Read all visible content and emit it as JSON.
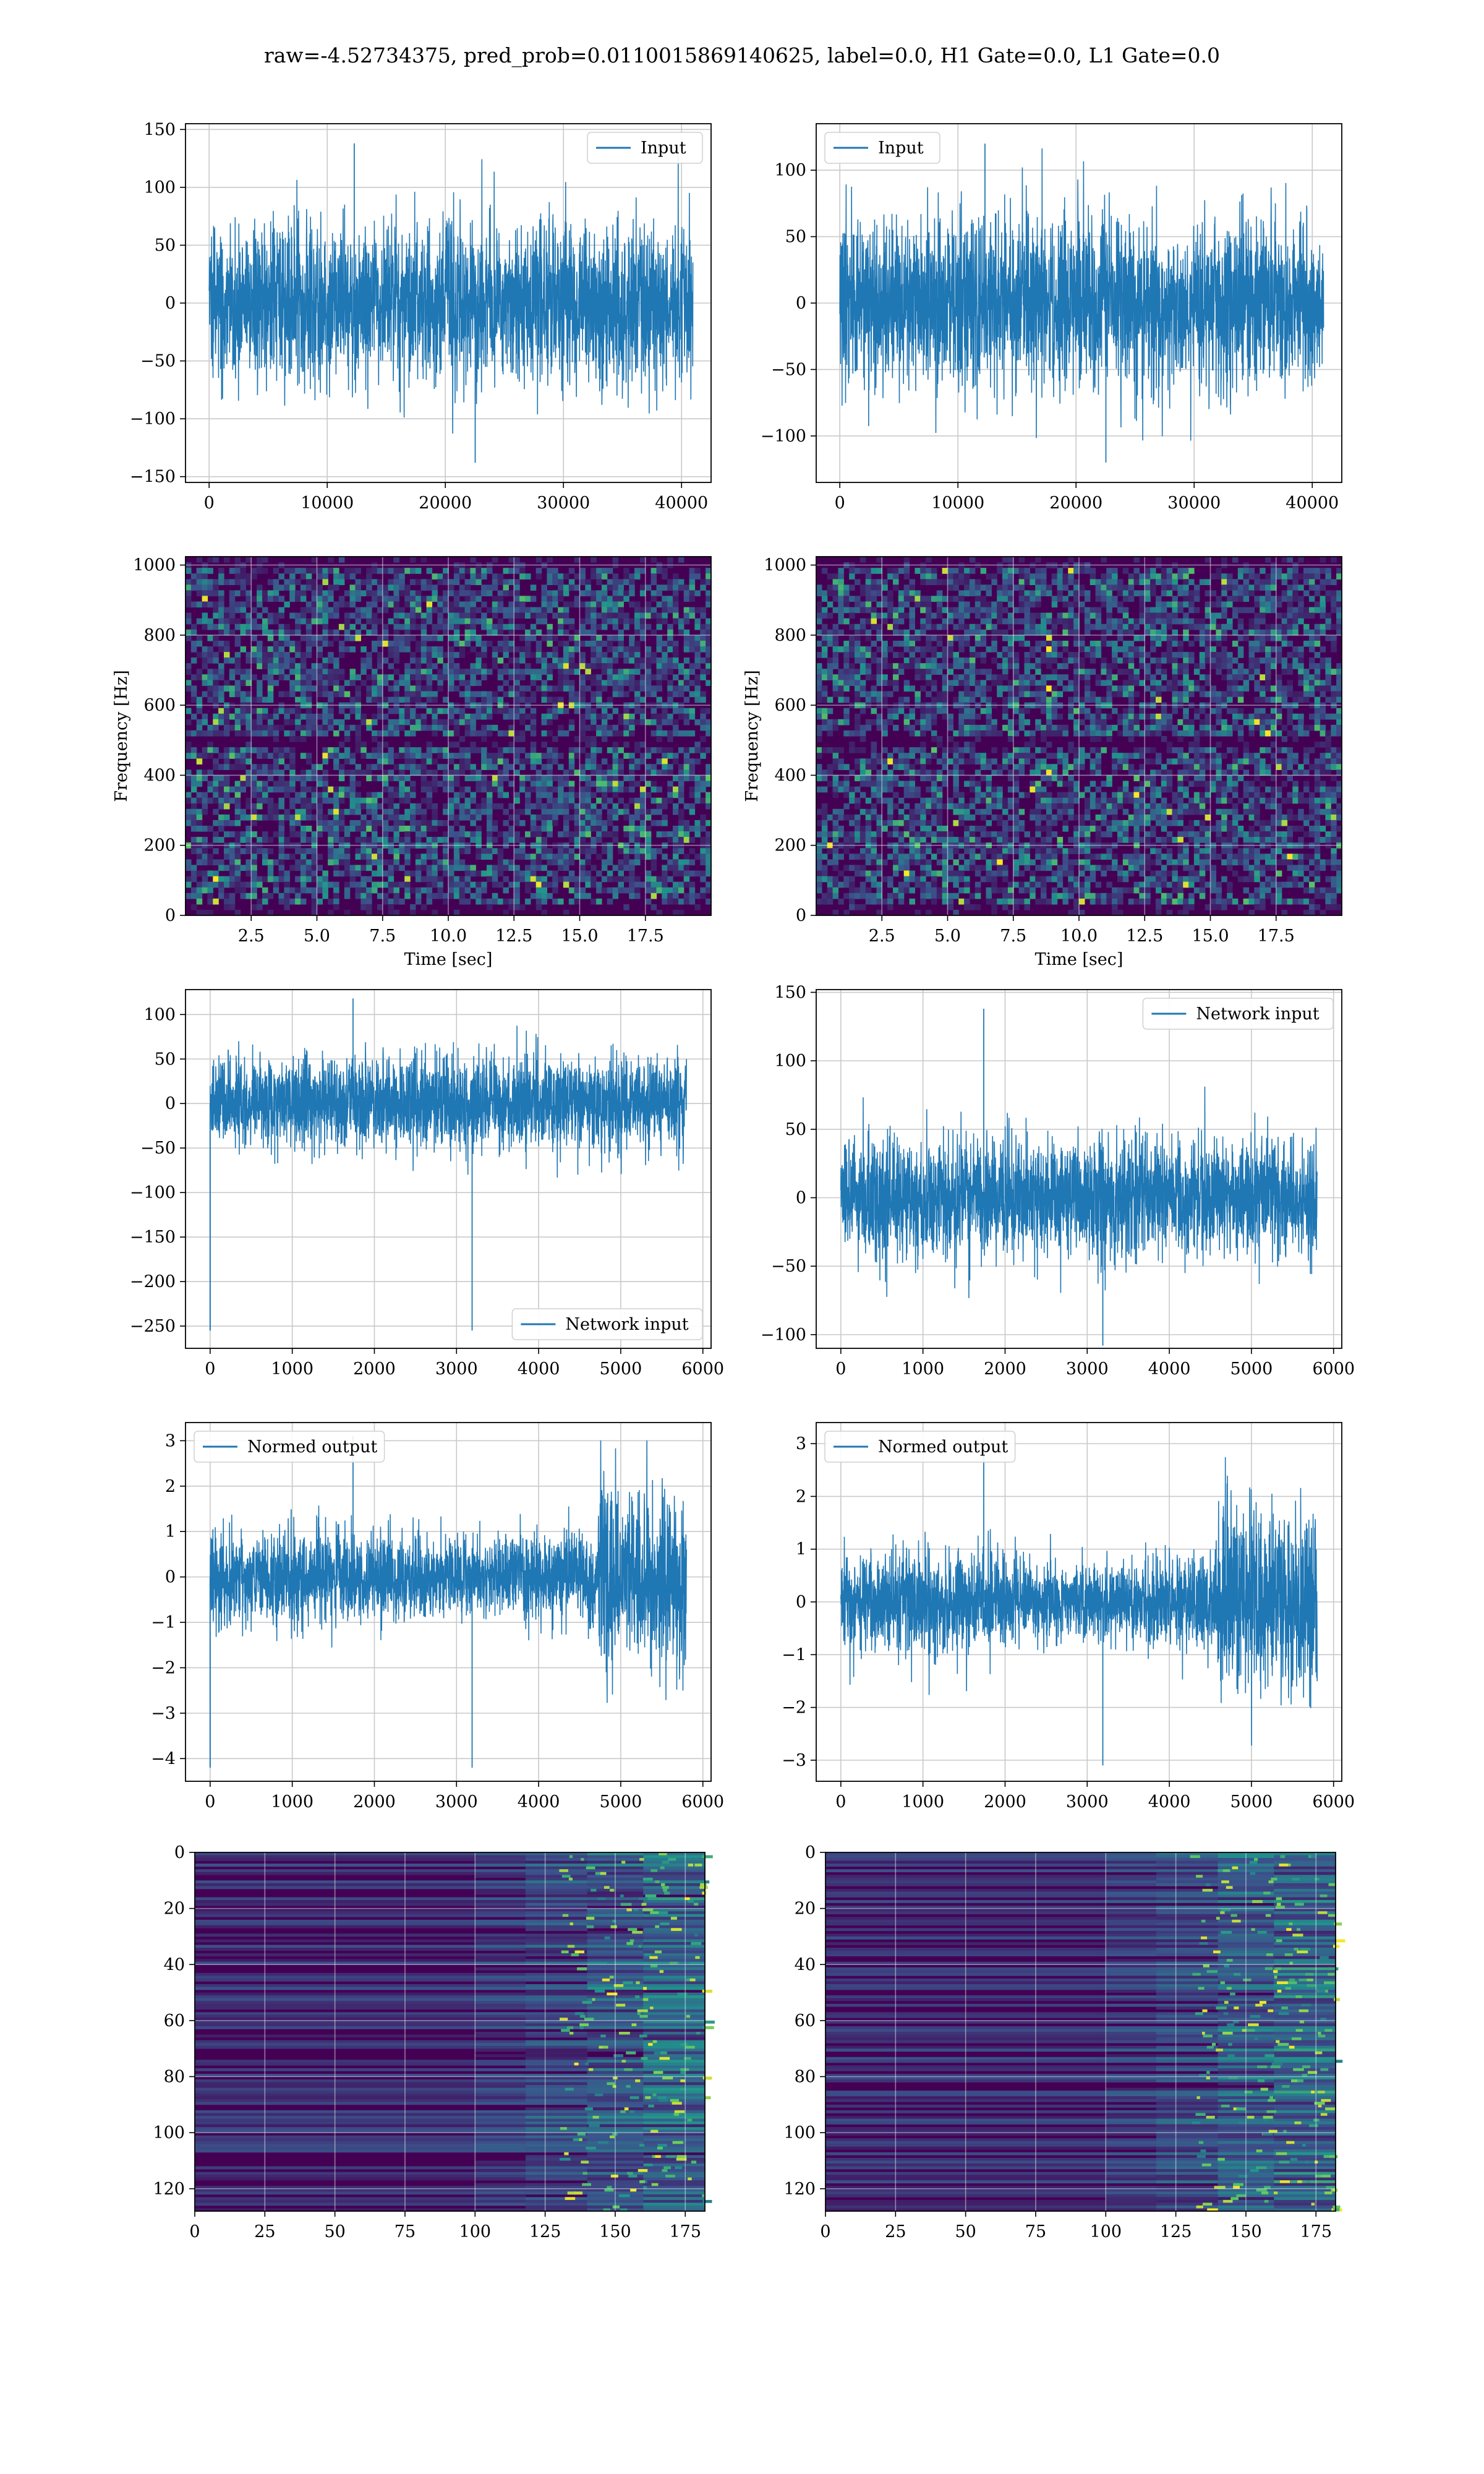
{
  "figure_title": "raw=-4.52734375, pred_prob=0.0110015869140625, label=0.0, H1 Gate=0.0, L1 Gate=0.0",
  "colors": {
    "line": "#1f77b4",
    "grid": "#c9c9c9",
    "viridis_low": "#440154",
    "viridis_mid": "#21918c",
    "viridis_high": "#fde725"
  },
  "chart_data": [
    {
      "id": "input_h1",
      "type": "line",
      "title": "",
      "xlabel": "",
      "ylabel": "",
      "xlim": [
        -2000,
        42500
      ],
      "ylim": [
        -155,
        155
      ],
      "xticks": [
        0,
        10000,
        20000,
        30000,
        40000
      ],
      "yticks": [
        -150,
        -100,
        -50,
        0,
        50,
        100,
        150
      ],
      "grid": true,
      "legend": "top-right",
      "series": [
        {
          "name": "Input",
          "x_range": [
            0,
            40960
          ],
          "n": 40960,
          "amplitude_typical": [
            -70,
            70
          ],
          "extremes": [
            -138,
            138
          ]
        }
      ]
    },
    {
      "id": "input_l1",
      "type": "line",
      "title": "",
      "xlabel": "",
      "ylabel": "",
      "xlim": [
        -2000,
        42500
      ],
      "ylim": [
        -135,
        135
      ],
      "xticks": [
        0,
        10000,
        20000,
        30000,
        40000
      ],
      "yticks": [
        -100,
        -50,
        0,
        50,
        100
      ],
      "grid": true,
      "legend": "top-left",
      "series": [
        {
          "name": "Input",
          "x_range": [
            0,
            40960
          ],
          "n": 40960,
          "amplitude_typical": [
            -65,
            65
          ],
          "extremes": [
            -120,
            120
          ]
        }
      ]
    },
    {
      "id": "spec_h1",
      "type": "heatmap",
      "title": "",
      "xlabel": "Time [sec]",
      "ylabel": "Frequency [Hz]",
      "xlim": [
        0,
        20
      ],
      "ylim": [
        0,
        1024
      ],
      "xticks": [
        2.5,
        5.0,
        7.5,
        10.0,
        12.5,
        15.0,
        17.5
      ],
      "xticklabels": [
        "2.5",
        "5.0",
        "7.5",
        "10.0",
        "12.5",
        "15.0",
        "17.5"
      ],
      "yticks": [
        0,
        200,
        400,
        600,
        800,
        1000
      ],
      "grid": true,
      "colormap": "viridis"
    },
    {
      "id": "spec_l1",
      "type": "heatmap",
      "title": "",
      "xlabel": "Time [sec]",
      "ylabel": "Frequency [Hz]",
      "xlim": [
        0,
        20
      ],
      "ylim": [
        0,
        1024
      ],
      "xticks": [
        2.5,
        5.0,
        7.5,
        10.0,
        12.5,
        15.0,
        17.5
      ],
      "xticklabels": [
        "2.5",
        "5.0",
        "7.5",
        "10.0",
        "12.5",
        "15.0",
        "17.5"
      ],
      "yticks": [
        0,
        200,
        400,
        600,
        800,
        1000
      ],
      "grid": true,
      "colormap": "viridis"
    },
    {
      "id": "net_h1",
      "type": "line",
      "title": "",
      "xlabel": "",
      "ylabel": "",
      "xlim": [
        -300,
        6100
      ],
      "ylim": [
        -275,
        128
      ],
      "xticks": [
        0,
        1000,
        2000,
        3000,
        4000,
        5000,
        6000
      ],
      "yticks": [
        -250,
        -200,
        -150,
        -100,
        -50,
        0,
        50,
        100
      ],
      "grid": true,
      "legend": "bottom-right",
      "series": [
        {
          "name": "Network input",
          "x_range": [
            0,
            5800
          ],
          "n": 5800,
          "amplitude_typical": [
            -55,
            55
          ],
          "extremes": [
            -255,
            118
          ]
        }
      ]
    },
    {
      "id": "net_l1",
      "type": "line",
      "title": "",
      "xlabel": "",
      "ylabel": "",
      "xlim": [
        -300,
        6100
      ],
      "ylim": [
        -110,
        152
      ],
      "xticks": [
        0,
        1000,
        2000,
        3000,
        4000,
        5000,
        6000
      ],
      "yticks": [
        -100,
        -50,
        0,
        50,
        100,
        150
      ],
      "grid": true,
      "legend": "top-right",
      "series": [
        {
          "name": "Network input",
          "x_range": [
            0,
            5800
          ],
          "n": 5800,
          "amplitude_typical": [
            -45,
            45
          ],
          "extremes": [
            -108,
            138
          ]
        }
      ]
    },
    {
      "id": "norm_h1",
      "type": "line",
      "title": "",
      "xlabel": "",
      "ylabel": "",
      "xlim": [
        -300,
        6100
      ],
      "ylim": [
        -4.5,
        3.4
      ],
      "xticks": [
        0,
        1000,
        2000,
        3000,
        4000,
        5000,
        6000
      ],
      "yticks": [
        -4,
        -3,
        -2,
        -1,
        0,
        1,
        2,
        3
      ],
      "grid": true,
      "legend": "top-left",
      "series": [
        {
          "name": "Normed output",
          "x_range": [
            0,
            5800
          ],
          "n": 5800,
          "amplitude_typical": [
            -1,
            1
          ],
          "extremes": [
            -4.2,
            3.1
          ]
        }
      ]
    },
    {
      "id": "norm_l1",
      "type": "line",
      "title": "",
      "xlabel": "",
      "ylabel": "",
      "xlim": [
        -300,
        6100
      ],
      "ylim": [
        -3.4,
        3.4
      ],
      "xticks": [
        0,
        1000,
        2000,
        3000,
        4000,
        5000,
        6000
      ],
      "yticks": [
        -3,
        -2,
        -1,
        0,
        1,
        2,
        3
      ],
      "grid": true,
      "legend": "top-left",
      "series": [
        {
          "name": "Normed output",
          "x_range": [
            0,
            5800
          ],
          "n": 5800,
          "amplitude_typical": [
            -0.9,
            0.9
          ],
          "extremes": [
            -3.1,
            3.1
          ]
        }
      ]
    },
    {
      "id": "feat_h1",
      "type": "heatmap",
      "title": "",
      "xlabel": "",
      "ylabel": "",
      "xlim": [
        0,
        182
      ],
      "ylim": [
        128,
        0
      ],
      "xticks": [
        0,
        25,
        50,
        75,
        100,
        125,
        150,
        175
      ],
      "yticks": [
        0,
        20,
        40,
        60,
        80,
        100,
        120
      ],
      "grid": true,
      "colormap": "viridis"
    },
    {
      "id": "feat_l1",
      "type": "heatmap",
      "title": "",
      "xlabel": "",
      "ylabel": "",
      "xlim": [
        0,
        182
      ],
      "ylim": [
        128,
        0
      ],
      "xticks": [
        0,
        25,
        50,
        75,
        100,
        125,
        150,
        175
      ],
      "yticks": [
        0,
        20,
        40,
        60,
        80,
        100,
        120
      ],
      "grid": true,
      "colormap": "viridis"
    }
  ]
}
